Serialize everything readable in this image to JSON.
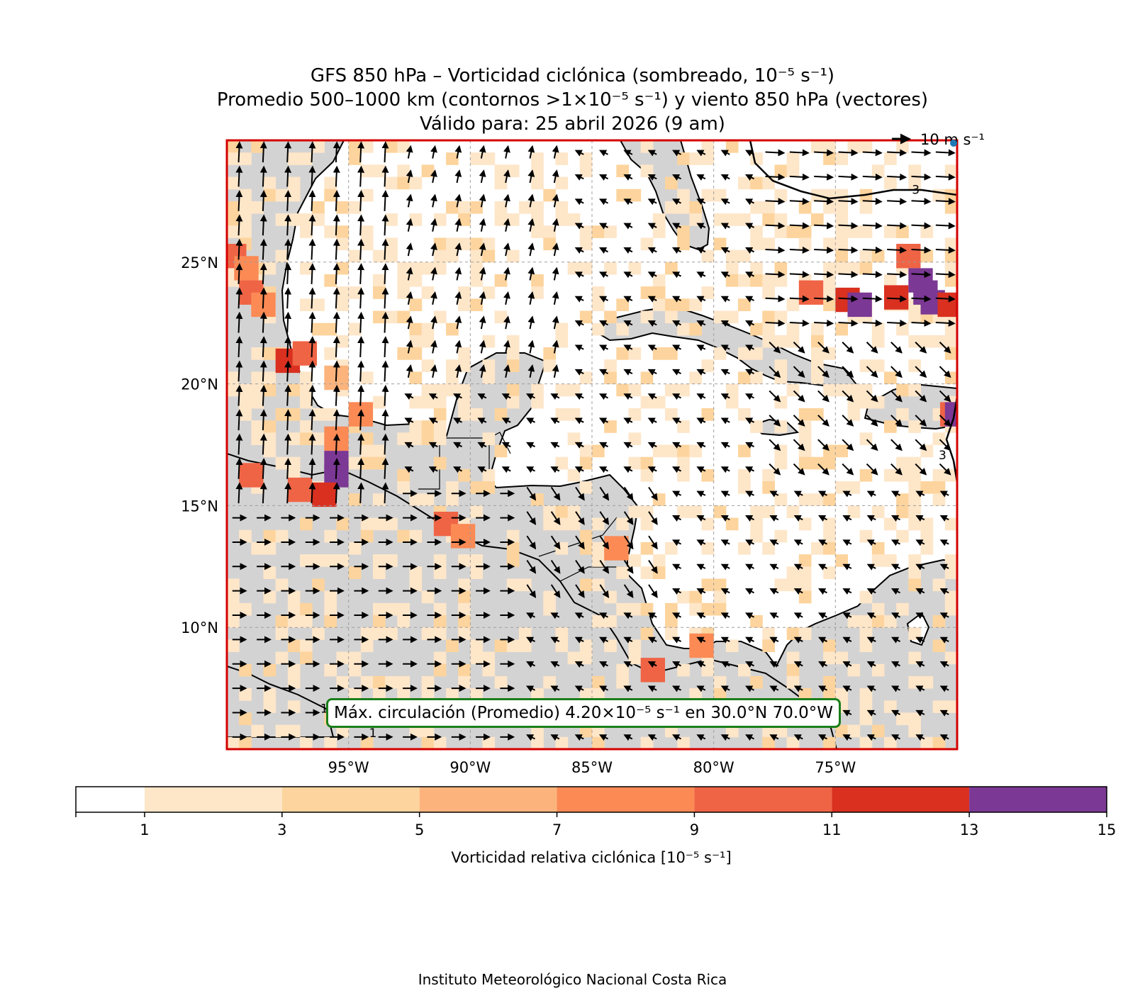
{
  "title": {
    "line1": "GFS 850 hPa – Vorticidad ciclónica (sombreado, 10⁻⁵ s⁻¹)",
    "line2": "Promedio 500–1000 km (contornos >1×10⁻⁵ s⁻¹) y viento 850 hPa (vectores)",
    "line3": "Válido para: 25 abril 2026 (9 am)"
  },
  "map": {
    "extent": {
      "lon_min": -100,
      "lon_max": -70,
      "lat_min": 5,
      "lat_max": 30
    },
    "lat_ticks": [
      {
        "value": 25,
        "label": "25°N"
      },
      {
        "value": 20,
        "label": "20°N"
      },
      {
        "value": 15,
        "label": "15°N"
      },
      {
        "value": 10,
        "label": "10°N"
      }
    ],
    "lon_ticks": [
      {
        "value": -95,
        "label": "95°W"
      },
      {
        "value": -90,
        "label": "90°W"
      },
      {
        "value": -85,
        "label": "85°W"
      },
      {
        "value": -80,
        "label": "80°W"
      },
      {
        "value": -75,
        "label": "75°W"
      }
    ],
    "land_color": "#d3d3d3",
    "frame_color": "#d40000",
    "quiver_key": "10 m s⁻¹",
    "contour_labels": [
      {
        "text": "3",
        "lon": -71.7,
        "lat": 27.8
      },
      {
        "text": "3",
        "lon": -70.6,
        "lat": 16.9
      },
      {
        "text": "1",
        "lon": -96.0,
        "lat": 6.5
      },
      {
        "text": "1",
        "lon": -94.0,
        "lat": 5.5
      }
    ],
    "max_circulation": "Máx. circulación (Promedio) 4.20×10⁻⁵ s⁻¹ en 30.0°N 70.0°W",
    "vorticity_patches": [
      {
        "lon": -99.7,
        "lat": 25.5,
        "value": 9
      },
      {
        "lon": -99.2,
        "lat": 25.0,
        "value": 7
      },
      {
        "lon": -99.0,
        "lat": 24.0,
        "value": 9
      },
      {
        "lon": -98.5,
        "lat": 23.5,
        "value": 7
      },
      {
        "lon": -97.5,
        "lat": 21.2,
        "value": 11
      },
      {
        "lon": -96.8,
        "lat": 21.5,
        "value": 9
      },
      {
        "lon": -95.5,
        "lat": 20.5,
        "value": 5
      },
      {
        "lon": -94.5,
        "lat": 19.0,
        "value": 7
      },
      {
        "lon": -95.5,
        "lat": 18.0,
        "value": 7
      },
      {
        "lon": -95.5,
        "lat": 17.0,
        "value": 13
      },
      {
        "lon": -95.5,
        "lat": 16.5,
        "value": 13
      },
      {
        "lon": -96.0,
        "lat": 15.7,
        "value": 11
      },
      {
        "lon": -97.0,
        "lat": 15.9,
        "value": 9
      },
      {
        "lon": -99.0,
        "lat": 16.5,
        "value": 9
      },
      {
        "lon": -91.0,
        "lat": 14.5,
        "value": 9
      },
      {
        "lon": -90.3,
        "lat": 14.0,
        "value": 7
      },
      {
        "lon": -84.0,
        "lat": 13.5,
        "value": 7
      },
      {
        "lon": -82.5,
        "lat": 8.5,
        "value": 9
      },
      {
        "lon": -80.5,
        "lat": 9.5,
        "value": 7
      },
      {
        "lon": -74.5,
        "lat": 23.7,
        "value": 11
      },
      {
        "lon": -74.0,
        "lat": 23.5,
        "value": 13
      },
      {
        "lon": -72.5,
        "lat": 23.8,
        "value": 11
      },
      {
        "lon": -71.3,
        "lat": 24.0,
        "value": 13
      },
      {
        "lon": -71.0,
        "lat": 23.6,
        "value": 13
      },
      {
        "lon": -70.3,
        "lat": 23.5,
        "value": 11
      },
      {
        "lon": -72.0,
        "lat": 25.5,
        "value": 9
      },
      {
        "lon": -71.5,
        "lat": 24.5,
        "value": 13
      },
      {
        "lon": -70.2,
        "lat": 19.0,
        "value": 9
      },
      {
        "lon": -70.0,
        "lat": 19.0,
        "value": 13
      },
      {
        "lon": -76.0,
        "lat": 24.0,
        "value": 9
      }
    ]
  },
  "colorbar": {
    "label": "Vorticidad relativa ciclónica [10⁻⁵ s⁻¹]",
    "levels": [
      1,
      3,
      5,
      7,
      9,
      11,
      13,
      15
    ],
    "colors": [
      "#ffffff",
      "#fee6c9",
      "#fdd49d",
      "#fcb47c",
      "#fb8a55",
      "#ef6445",
      "#d93020",
      "#7b3894"
    ]
  },
  "footer": "Instituto Meteorológico Nacional Costa Rica"
}
